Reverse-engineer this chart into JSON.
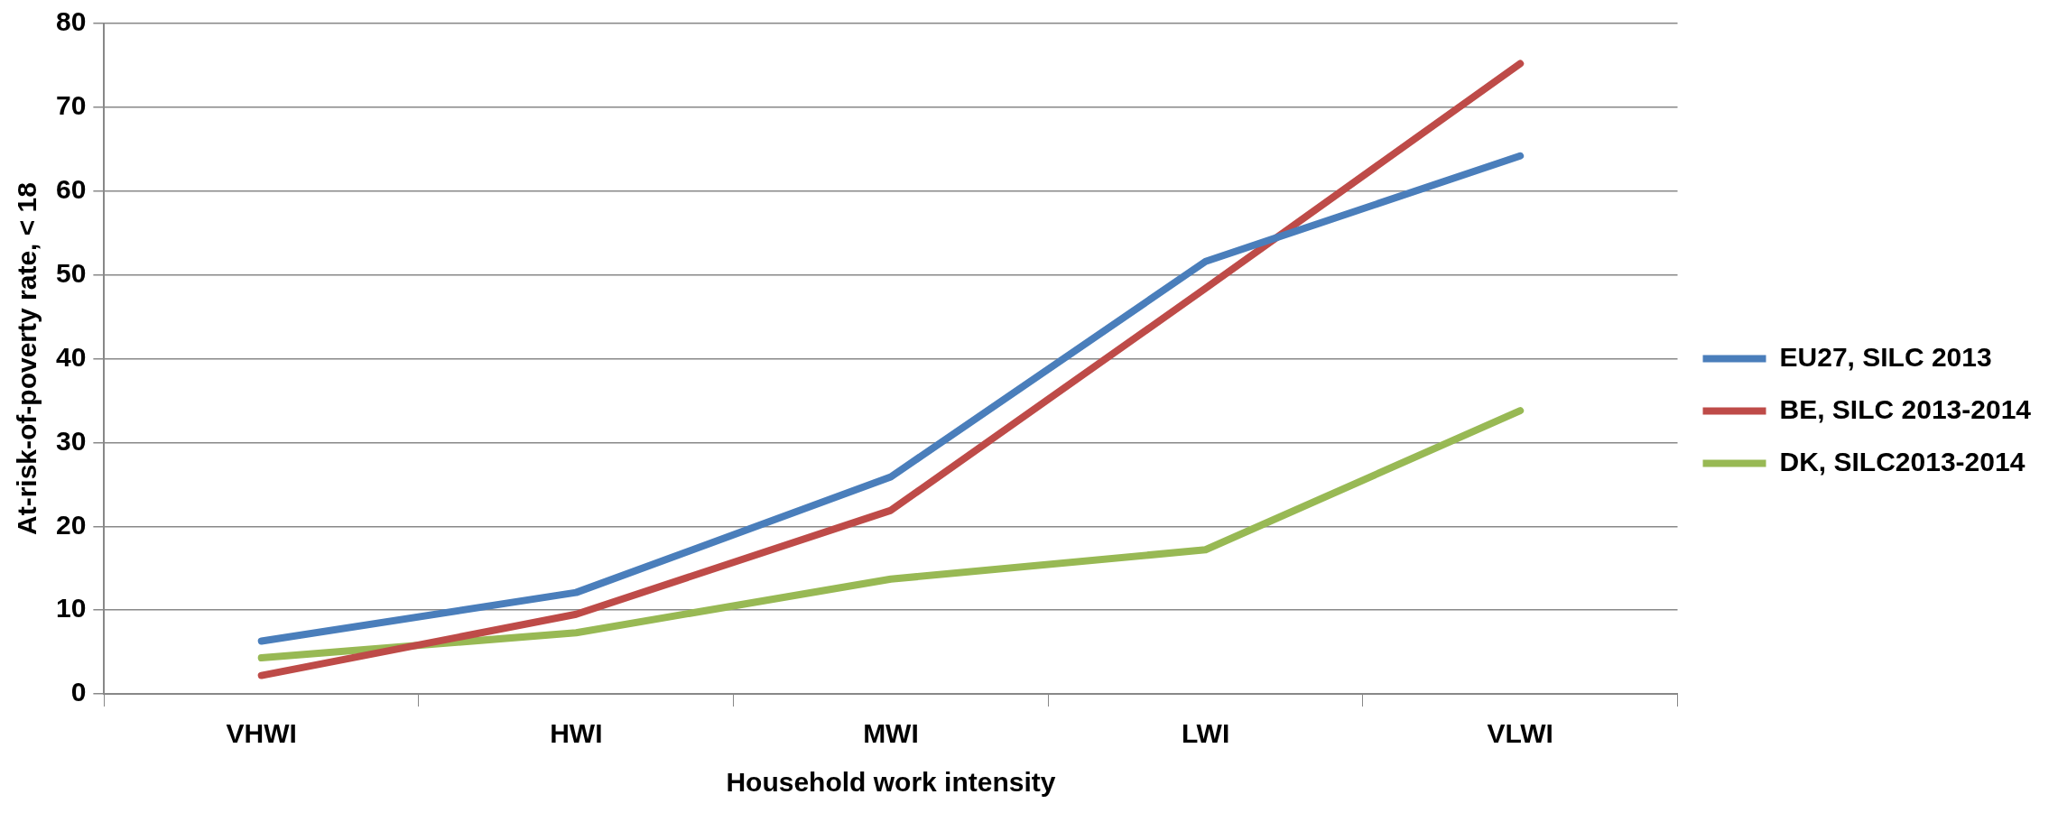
{
  "chart_data": {
    "type": "line",
    "xlabel": "Household work intensity",
    "ylabel": "At-risk-of-poverty rate, < 18",
    "categories": [
      "VHWI",
      "HWI",
      "MWI",
      "LWI",
      "VLWI"
    ],
    "series": [
      {
        "name": "EU27, SILC 2013",
        "color": "#4a7ebb",
        "values": [
          6.3,
          12.1,
          25.9,
          51.6,
          64.2
        ]
      },
      {
        "name": "BE, SILC 2013-2014",
        "color": "#be4b48",
        "values": [
          2.2,
          9.5,
          21.9,
          48.4,
          75.2
        ]
      },
      {
        "name": "DK, SILC2013-2014",
        "color": "#98b954",
        "values": [
          4.3,
          7.3,
          13.7,
          17.2,
          33.8
        ]
      }
    ],
    "ylim": [
      0,
      80
    ],
    "yticks": [
      0,
      10,
      20,
      30,
      40,
      50,
      60,
      70,
      80
    ],
    "grid": "y",
    "legend": "right",
    "marker": "none",
    "line_style": "solid"
  }
}
